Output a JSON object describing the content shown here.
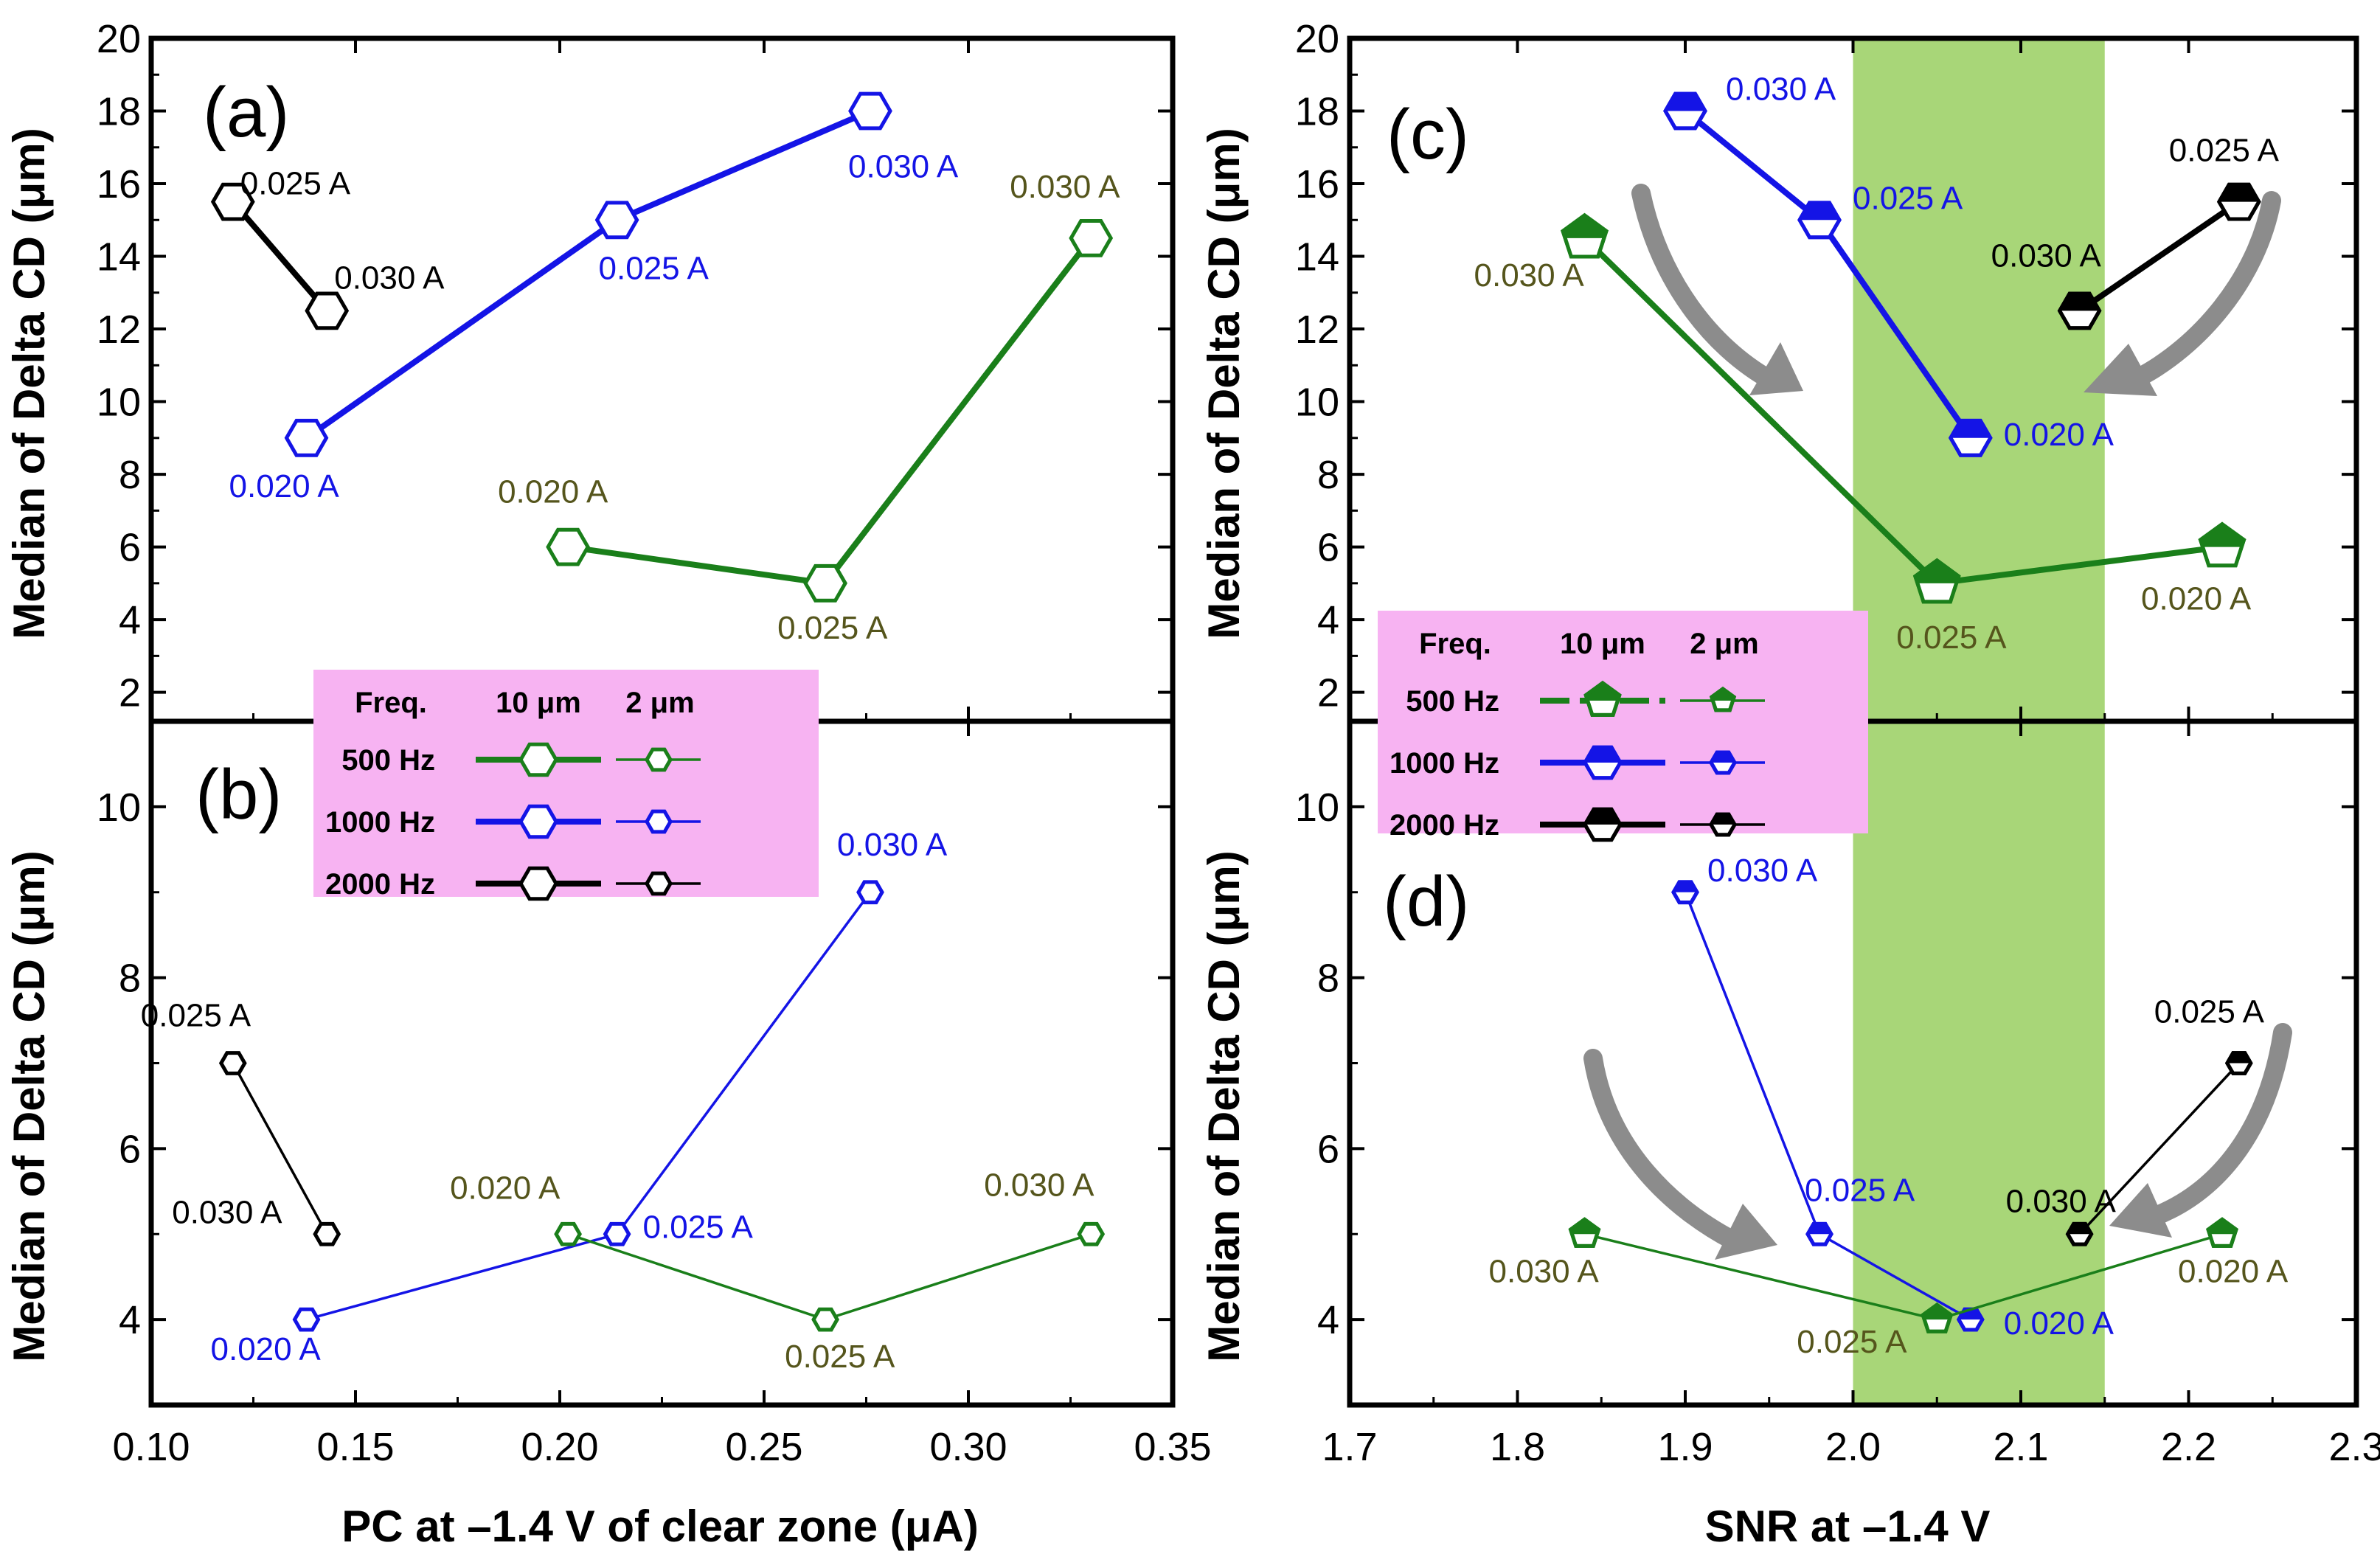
{
  "colors": {
    "500 Hz": "#1a7f1a",
    "1000 Hz": "#1414e6",
    "2000 Hz": "#000000",
    "label_500": "#55551c",
    "highlight": "#a8d678",
    "legend_bg": "#f7b3f2",
    "arrow": "#8c8c8c"
  },
  "chart_data": [
    {
      "id": "a",
      "panel_label": "(a)",
      "type": "line",
      "xlabel": "PC at –1.4 V of clear zone (μA)",
      "ylabel": "Median of Delta CD (μm)",
      "xlim": [
        0.1,
        0.35
      ],
      "ylim": [
        1.2,
        20
      ],
      "yticks": [
        "2",
        "4",
        "6",
        "8",
        "10",
        "12",
        "14",
        "16",
        "18",
        "20"
      ],
      "xticks": [
        "0.10",
        "0.15",
        "0.20",
        "0.25",
        "0.30",
        "0.35"
      ],
      "marker": "hexagon",
      "series": [
        {
          "name": "2000 Hz",
          "x": [
            0.12,
            0.143
          ],
          "y": [
            15.5,
            12.5
          ],
          "labels": [
            "0.025 A",
            "0.030 A"
          ]
        },
        {
          "name": "1000 Hz",
          "x": [
            0.138,
            0.214,
            0.276
          ],
          "y": [
            9,
            15,
            18
          ],
          "labels": [
            "0.020 A",
            "0.025 A",
            "0.030 A"
          ]
        },
        {
          "name": "500 Hz",
          "x": [
            0.202,
            0.265,
            0.33
          ],
          "y": [
            6,
            5,
            14.5
          ],
          "labels": [
            "0.020 A",
            "0.025 A",
            "0.030 A"
          ]
        }
      ]
    },
    {
      "id": "b",
      "panel_label": "(b)",
      "type": "line",
      "xlabel": "PC at –1.4 V of clear zone (μA)",
      "ylabel": "Median of Delta CD (μm)",
      "xlim": [
        0.1,
        0.35
      ],
      "ylim": [
        3.0,
        11.0
      ],
      "yticks": [
        "4",
        "6",
        "8",
        "10"
      ],
      "xticks": [
        "0.10",
        "0.15",
        "0.20",
        "0.25",
        "0.30",
        "0.35"
      ],
      "marker": "hexagon",
      "series": [
        {
          "name": "2000 Hz",
          "x": [
            0.12,
            0.143
          ],
          "y": [
            7,
            5
          ],
          "labels": [
            "0.025 A",
            "0.030 A"
          ]
        },
        {
          "name": "1000 Hz",
          "x": [
            0.138,
            0.214,
            0.276
          ],
          "y": [
            4,
            5,
            9
          ],
          "labels": [
            "0.020 A",
            "0.025 A",
            "0.030 A"
          ]
        },
        {
          "name": "500 Hz",
          "x": [
            0.202,
            0.265,
            0.33
          ],
          "y": [
            5,
            4,
            5
          ],
          "labels": [
            "0.020 A",
            "0.025 A",
            "0.030 A"
          ]
        }
      ]
    },
    {
      "id": "c",
      "panel_label": "(c)",
      "type": "line",
      "xlabel": "SNR at –1.4 V",
      "ylabel": "Median of Delta CD (μm)",
      "xlim": [
        1.7,
        2.3
      ],
      "ylim": [
        1.2,
        20
      ],
      "yticks": [
        "2",
        "4",
        "6",
        "8",
        "10",
        "12",
        "14",
        "16",
        "18",
        "20"
      ],
      "xticks": [
        "1.7",
        "1.8",
        "1.9",
        "2.0",
        "2.1",
        "2.2",
        "2.3"
      ],
      "highlight_x": [
        2.0,
        2.15
      ],
      "series": [
        {
          "name": "1000 Hz",
          "marker": "hexagon",
          "x": [
            1.9,
            1.98,
            2.07
          ],
          "y": [
            18,
            15,
            9
          ],
          "labels": [
            "0.030 A",
            "0.025 A",
            "0.020 A"
          ]
        },
        {
          "name": "2000 Hz",
          "marker": "hexagon",
          "x": [
            2.135,
            2.23
          ],
          "y": [
            12.5,
            15.5
          ],
          "labels": [
            "0.030 A",
            "0.025 A"
          ]
        },
        {
          "name": "500 Hz",
          "marker": "pentagon",
          "x": [
            1.84,
            2.05,
            2.22
          ],
          "y": [
            14.5,
            5,
            6
          ],
          "labels": [
            "0.030 A",
            "0.025 A",
            "0.020 A"
          ]
        }
      ]
    },
    {
      "id": "d",
      "panel_label": "(d)",
      "type": "line",
      "xlabel": "SNR at –1.4 V",
      "ylabel": "Median of Delta CD (μm)",
      "xlim": [
        1.7,
        2.3
      ],
      "ylim": [
        3.0,
        11.0
      ],
      "yticks": [
        "4",
        "6",
        "8",
        "10"
      ],
      "xticks": [
        "1.7",
        "1.8",
        "1.9",
        "2.0",
        "2.1",
        "2.2",
        "2.3"
      ],
      "highlight_x": [
        2.0,
        2.15
      ],
      "series": [
        {
          "name": "1000 Hz",
          "marker": "hexagon",
          "x": [
            1.9,
            1.98,
            2.07
          ],
          "y": [
            9,
            5,
            4
          ],
          "labels": [
            "0.030 A",
            "0.025 A",
            "0.020 A"
          ]
        },
        {
          "name": "2000 Hz",
          "marker": "hexagon",
          "x": [
            2.135,
            2.23
          ],
          "y": [
            5,
            7
          ],
          "labels": [
            "0.030 A",
            "0.025 A"
          ]
        },
        {
          "name": "500 Hz",
          "marker": "pentagon",
          "x": [
            1.84,
            2.05,
            2.22
          ],
          "y": [
            5,
            4,
            5
          ],
          "labels": [
            "0.030 A",
            "0.025 A",
            "0.020 A"
          ]
        }
      ]
    }
  ],
  "legend_left": {
    "headers": [
      "Freq.",
      "10 μm",
      "2 μm"
    ],
    "rows": [
      "500 Hz",
      "1000 Hz",
      "2000 Hz"
    ]
  },
  "legend_right": {
    "headers": [
      "Freq.",
      "10 μm",
      "2 μm"
    ],
    "rows": [
      "500 Hz",
      "1000 Hz",
      "2000 Hz"
    ]
  }
}
